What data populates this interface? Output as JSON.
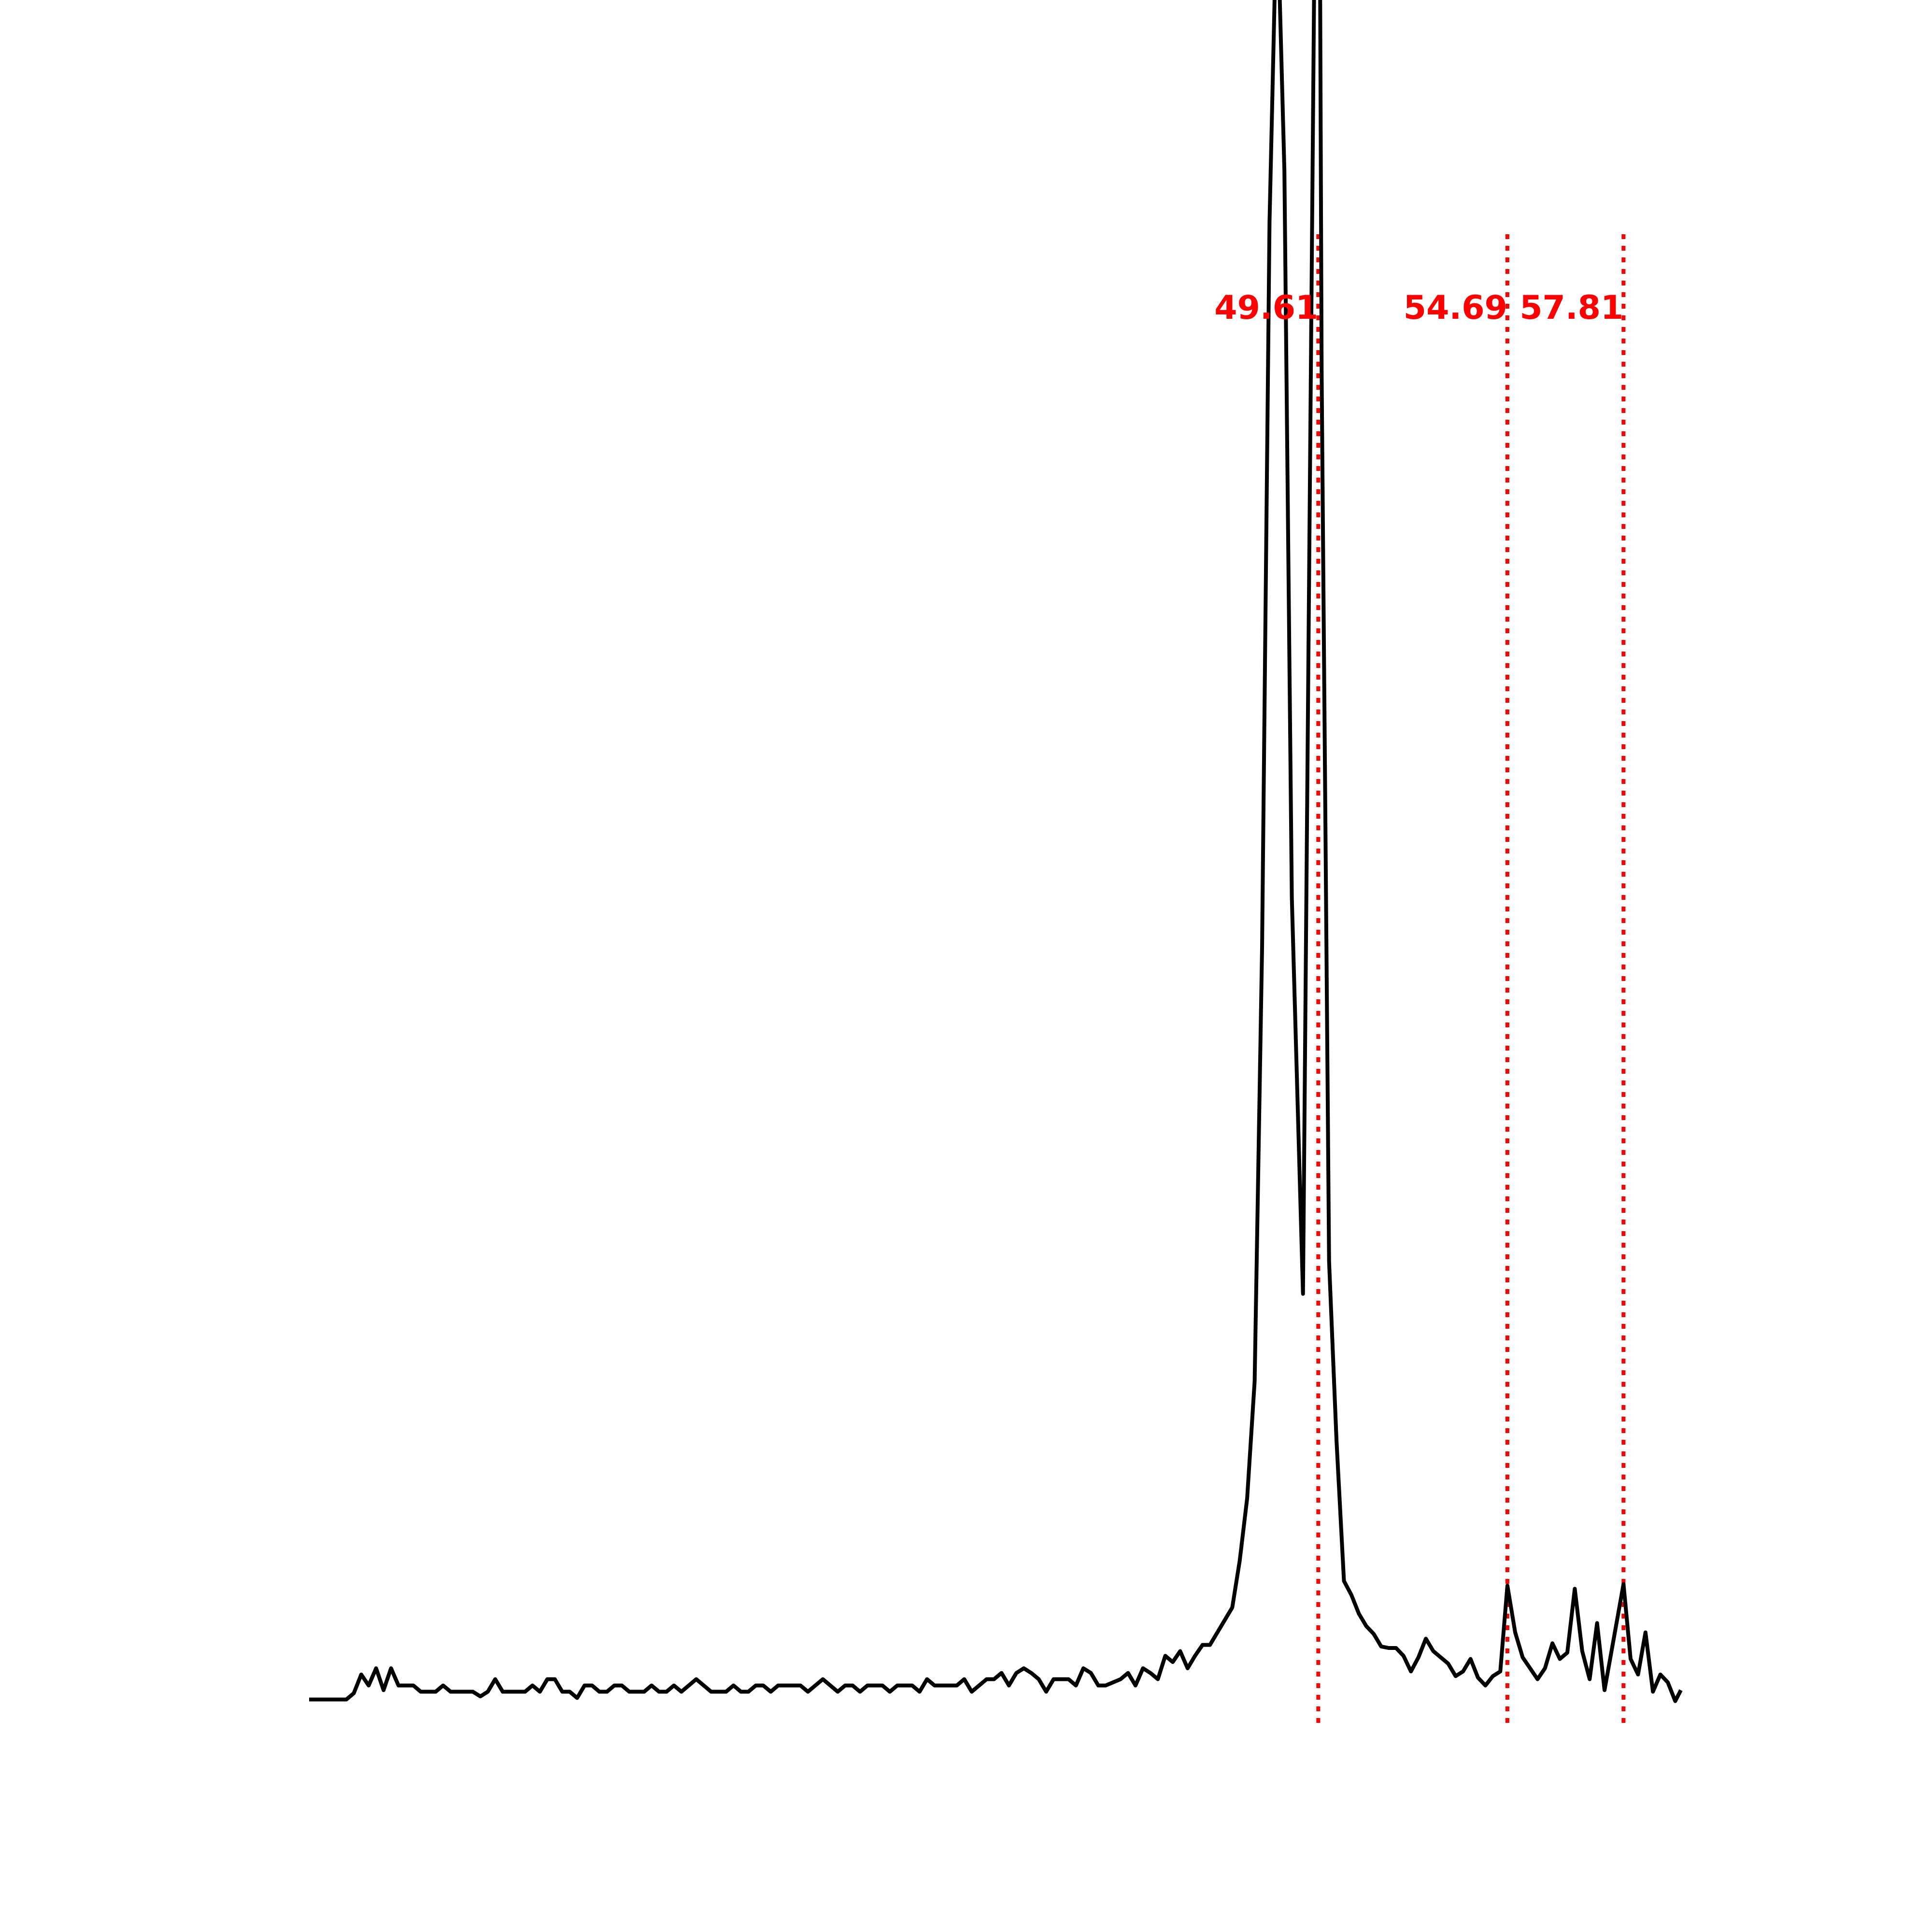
{
  "chart_data": {
    "type": "line",
    "title": "",
    "xlabel": "",
    "ylabel": "",
    "axes_visible": false,
    "grid": false,
    "legend": "none",
    "xlim": [
      22.5,
      59.35
    ],
    "ylim": [
      0,
      100
    ],
    "line_color": "#000000",
    "marker_color": "#ff0000",
    "series": [
      {
        "values": [
          [
            22.5,
            1.9
          ],
          [
            23.5,
            1.9
          ],
          [
            23.7,
            2.3
          ],
          [
            23.9,
            3.5
          ],
          [
            24.1,
            2.8
          ],
          [
            24.3,
            3.9
          ],
          [
            24.5,
            2.5
          ],
          [
            24.7,
            3.9
          ],
          [
            24.9,
            2.8
          ],
          [
            25.3,
            2.8
          ],
          [
            25.5,
            2.4
          ],
          [
            25.9,
            2.4
          ],
          [
            26.1,
            2.8
          ],
          [
            26.3,
            2.4
          ],
          [
            26.9,
            2.4
          ],
          [
            27.1,
            2.1
          ],
          [
            27.3,
            2.4
          ],
          [
            27.5,
            3.2
          ],
          [
            27.7,
            2.4
          ],
          [
            28.3,
            2.4
          ],
          [
            28.5,
            2.8
          ],
          [
            28.7,
            2.4
          ],
          [
            28.9,
            3.2
          ],
          [
            29.1,
            3.2
          ],
          [
            29.3,
            2.4
          ],
          [
            29.5,
            2.4
          ],
          [
            29.7,
            2.0
          ],
          [
            29.9,
            2.8
          ],
          [
            30.1,
            2.8
          ],
          [
            30.3,
            2.4
          ],
          [
            30.5,
            2.4
          ],
          [
            30.7,
            2.8
          ],
          [
            30.9,
            2.8
          ],
          [
            31.1,
            2.4
          ],
          [
            31.5,
            2.4
          ],
          [
            31.7,
            2.8
          ],
          [
            31.9,
            2.4
          ],
          [
            32.1,
            2.4
          ],
          [
            32.3,
            2.8
          ],
          [
            32.5,
            2.4
          ],
          [
            32.7,
            2.8
          ],
          [
            32.9,
            3.2
          ],
          [
            33.1,
            2.8
          ],
          [
            33.3,
            2.4
          ],
          [
            33.7,
            2.4
          ],
          [
            33.9,
            2.8
          ],
          [
            34.1,
            2.4
          ],
          [
            34.3,
            2.4
          ],
          [
            34.5,
            2.8
          ],
          [
            34.7,
            2.8
          ],
          [
            34.9,
            2.4
          ],
          [
            35.1,
            2.8
          ],
          [
            35.7,
            2.8
          ],
          [
            35.9,
            2.4
          ],
          [
            36.1,
            2.8
          ],
          [
            36.3,
            3.2
          ],
          [
            36.5,
            2.8
          ],
          [
            36.7,
            2.4
          ],
          [
            36.9,
            2.8
          ],
          [
            37.1,
            2.8
          ],
          [
            37.3,
            2.4
          ],
          [
            37.5,
            2.8
          ],
          [
            37.9,
            2.8
          ],
          [
            38.1,
            2.4
          ],
          [
            38.3,
            2.8
          ],
          [
            38.7,
            2.8
          ],
          [
            38.9,
            2.4
          ],
          [
            39.1,
            3.2
          ],
          [
            39.3,
            2.8
          ],
          [
            39.9,
            2.8
          ],
          [
            40.1,
            3.2
          ],
          [
            40.3,
            2.4
          ],
          [
            40.5,
            2.8
          ],
          [
            40.7,
            3.2
          ],
          [
            40.9,
            3.2
          ],
          [
            41.1,
            3.6
          ],
          [
            41.3,
            2.8
          ],
          [
            41.5,
            3.6
          ],
          [
            41.7,
            3.9
          ],
          [
            41.9,
            3.6
          ],
          [
            42.1,
            3.2
          ],
          [
            42.3,
            2.4
          ],
          [
            42.5,
            3.2
          ],
          [
            42.9,
            3.2
          ],
          [
            43.1,
            2.8
          ],
          [
            43.3,
            3.9
          ],
          [
            43.5,
            3.6
          ],
          [
            43.7,
            2.8
          ],
          [
            43.9,
            2.8
          ],
          [
            44.3,
            3.2
          ],
          [
            44.5,
            3.6
          ],
          [
            44.7,
            2.8
          ],
          [
            44.9,
            3.9
          ],
          [
            45.1,
            3.6
          ],
          [
            45.3,
            3.2
          ],
          [
            45.5,
            4.7
          ],
          [
            45.7,
            4.3
          ],
          [
            45.9,
            5.0
          ],
          [
            46.1,
            3.9
          ],
          [
            46.3,
            4.7
          ],
          [
            46.5,
            5.4
          ],
          [
            46.7,
            5.4
          ],
          [
            46.9,
            6.2
          ],
          [
            47.1,
            7.0
          ],
          [
            47.3,
            7.8
          ],
          [
            47.5,
            10.8
          ],
          [
            47.7,
            14.8
          ],
          [
            47.9,
            22.3
          ],
          [
            48.1,
            50.1
          ],
          [
            48.3,
            96.6
          ],
          [
            48.5,
            117.6
          ],
          [
            48.7,
            99.9
          ],
          [
            48.9,
            53.3
          ],
          [
            49.2,
            27.9
          ],
          [
            49.61,
            142.6
          ],
          [
            49.7,
            87.0
          ],
          [
            49.9,
            30.0
          ],
          [
            50.1,
            18.5
          ],
          [
            50.3,
            9.5
          ],
          [
            50.5,
            8.6
          ],
          [
            50.7,
            7.4
          ],
          [
            50.9,
            6.6
          ],
          [
            51.1,
            6.1
          ],
          [
            51.3,
            5.3
          ],
          [
            51.5,
            5.2
          ],
          [
            51.7,
            5.2
          ],
          [
            51.9,
            4.7
          ],
          [
            52.1,
            3.7
          ],
          [
            52.3,
            4.6
          ],
          [
            52.5,
            5.8
          ],
          [
            52.7,
            5.0
          ],
          [
            52.9,
            4.6
          ],
          [
            53.1,
            4.2
          ],
          [
            53.3,
            3.4
          ],
          [
            53.5,
            3.7
          ],
          [
            53.7,
            4.5
          ],
          [
            53.9,
            3.3
          ],
          [
            54.1,
            2.8
          ],
          [
            54.3,
            3.4
          ],
          [
            54.5,
            3.7
          ],
          [
            54.69,
            9.2
          ],
          [
            54.9,
            6.2
          ],
          [
            55.1,
            4.6
          ],
          [
            55.5,
            3.2
          ],
          [
            55.7,
            3.9
          ],
          [
            55.9,
            5.5
          ],
          [
            56.1,
            4.5
          ],
          [
            56.3,
            4.9
          ],
          [
            56.5,
            9.0
          ],
          [
            56.7,
            5.0
          ],
          [
            56.9,
            3.2
          ],
          [
            57.1,
            6.8
          ],
          [
            57.3,
            2.5
          ],
          [
            57.81,
            9.3
          ],
          [
            58.0,
            4.5
          ],
          [
            58.2,
            3.5
          ],
          [
            58.4,
            6.2
          ],
          [
            58.6,
            2.4
          ],
          [
            58.8,
            3.5
          ],
          [
            59.0,
            3.0
          ],
          [
            59.2,
            1.8
          ],
          [
            59.35,
            2.5
          ]
        ]
      }
    ],
    "markers": [
      {
        "x": 49.61,
        "label": "49.61"
      },
      {
        "x": 54.69,
        "label": "54.69"
      },
      {
        "x": 57.81,
        "label": "57.81"
      }
    ]
  }
}
